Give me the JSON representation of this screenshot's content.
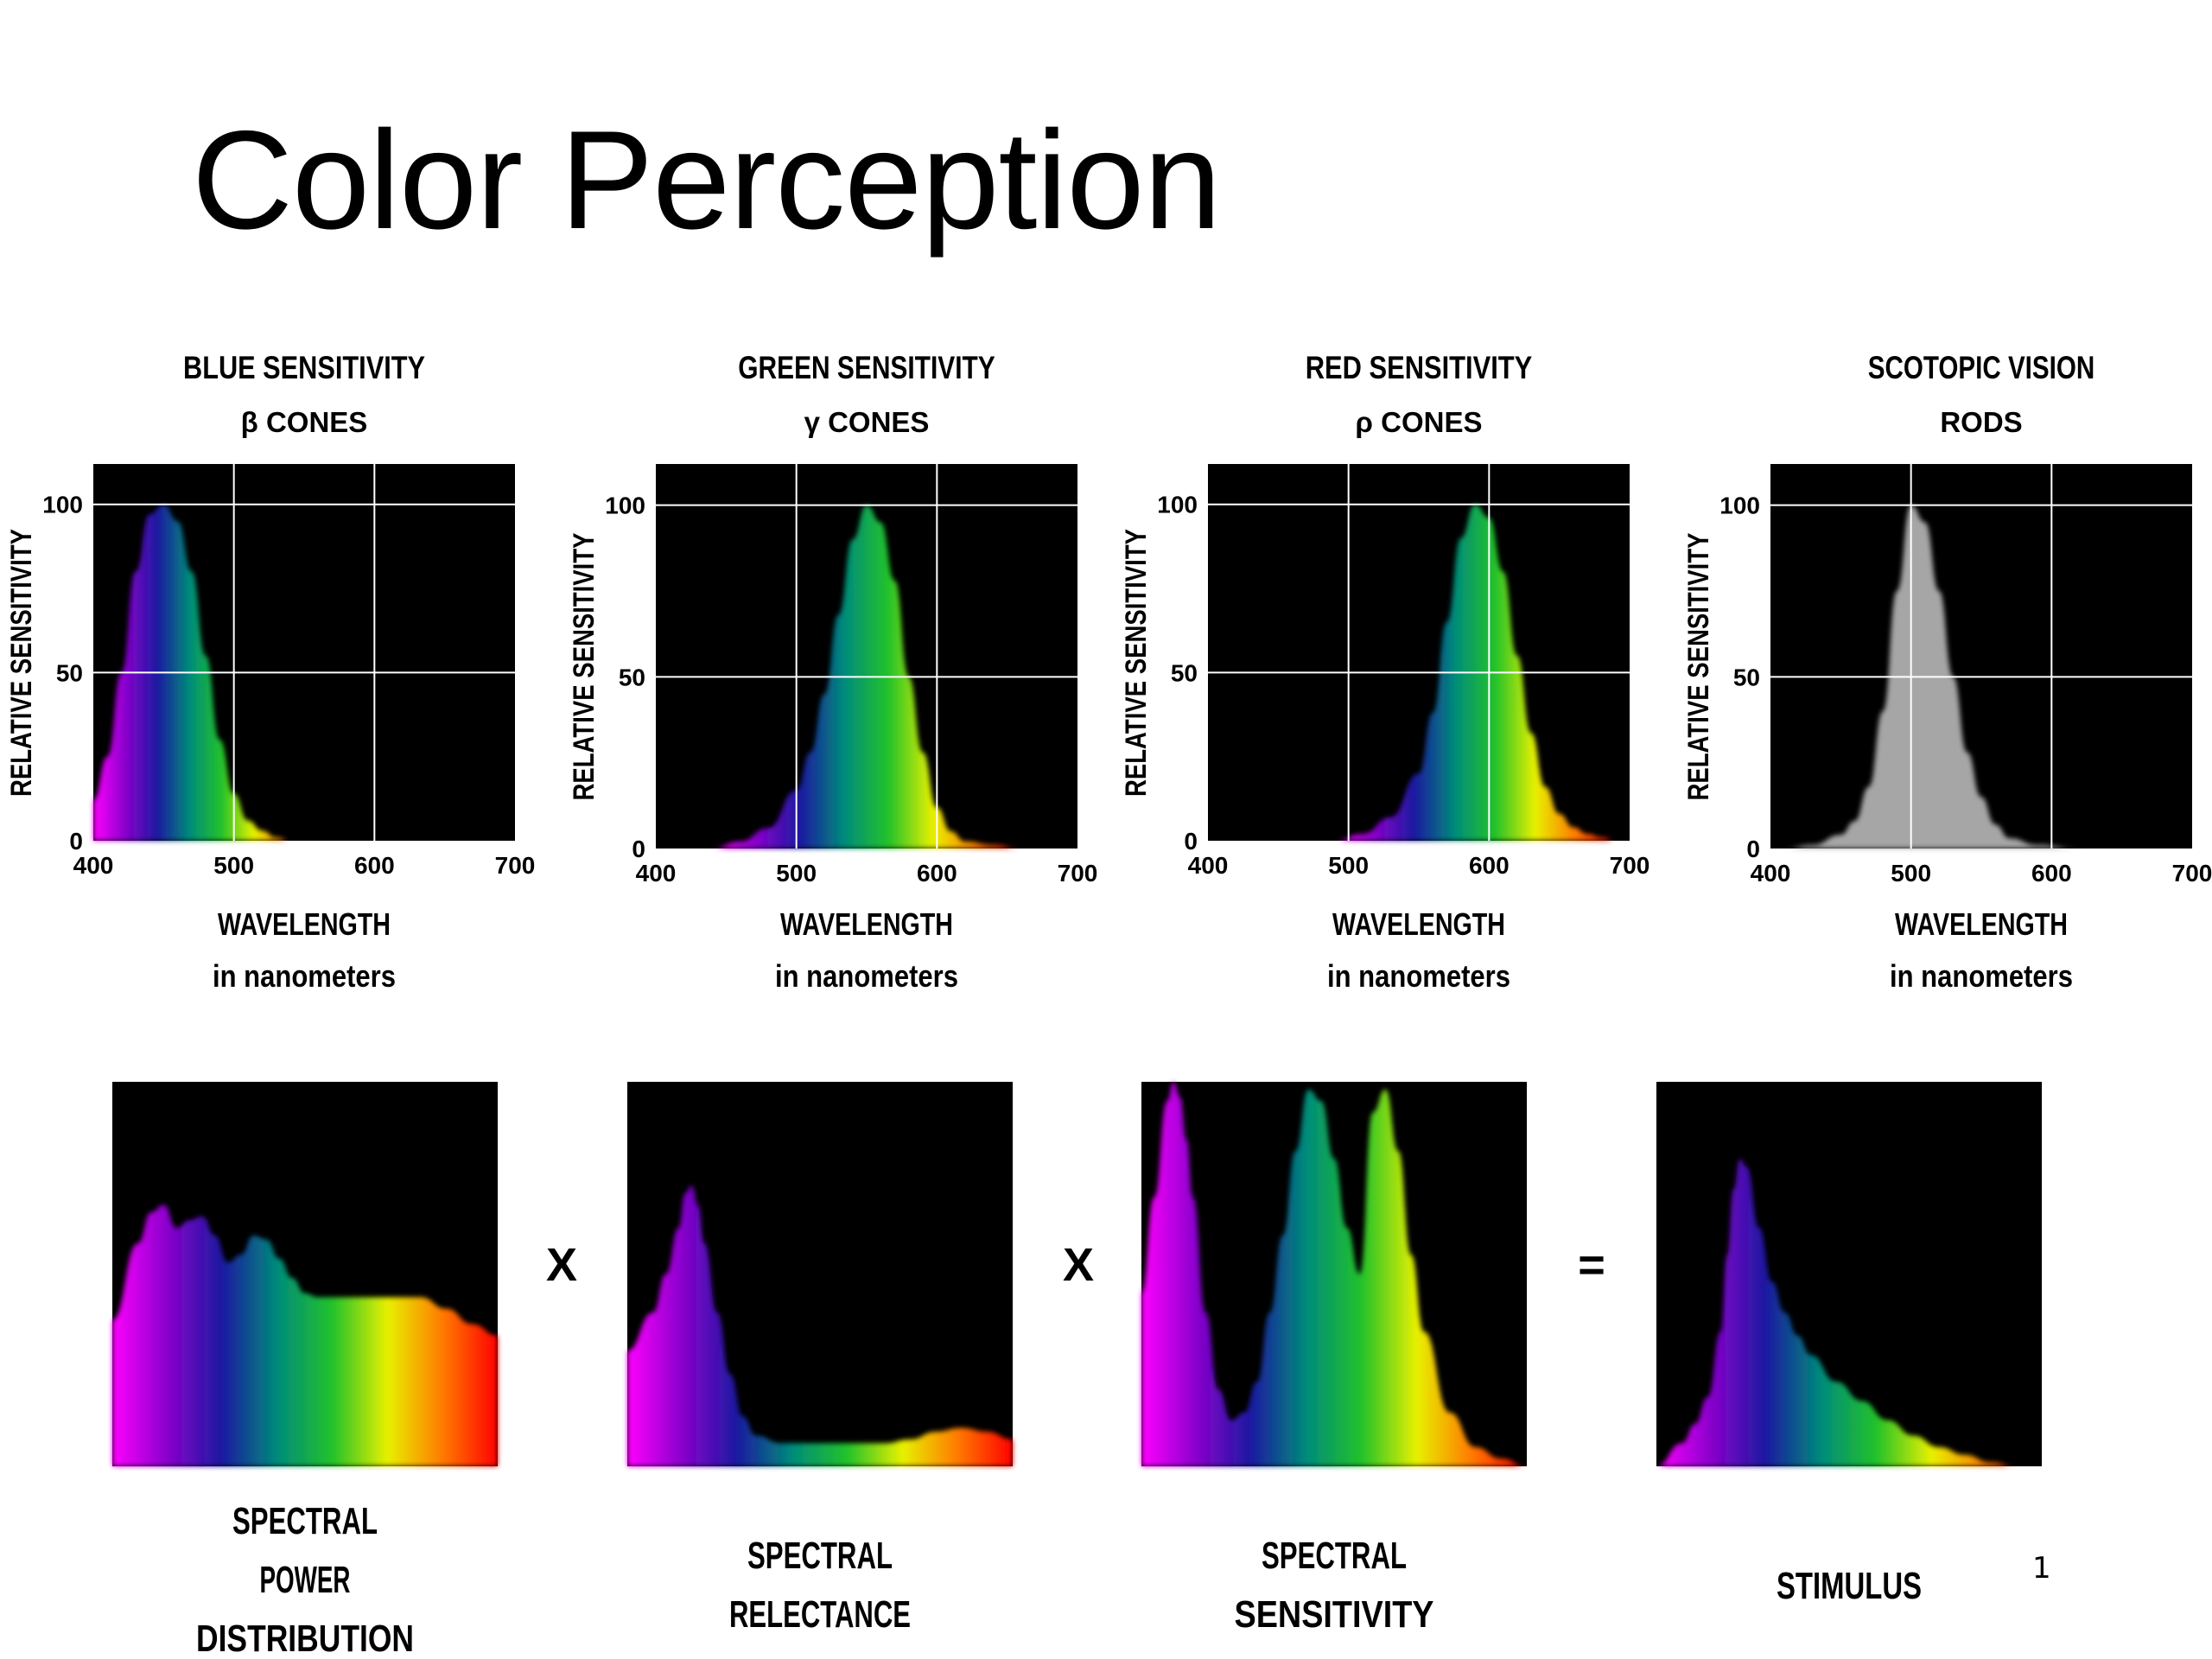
{
  "title": "Color Perception",
  "slide_number": "1",
  "colors": {
    "plot_background": "#000000",
    "grid": "#ffffff",
    "rods_fill": "#a6a6a6",
    "spectrum": [
      "#ff00ff",
      "#8800cc",
      "#1a1aa0",
      "#008c7a",
      "#22c22a",
      "#e8f000",
      "#ff7a00",
      "#ff0000"
    ]
  },
  "chart_data": [
    {
      "type": "area",
      "title": "BLUE SENSITIVITY",
      "subtitle": "β CONES",
      "xlabel": "WAVELENGTH",
      "xlabel_sub": "in nanometers",
      "ylabel": "RELATIVE SENSITIVITY",
      "xlim": [
        400,
        700
      ],
      "ylim": [
        0,
        112
      ],
      "x_ticks": [
        400,
        500,
        600,
        700
      ],
      "y_ticks": [
        0,
        50,
        100
      ],
      "grid": true,
      "fill": "spectrum",
      "x": [
        400,
        410,
        420,
        430,
        440,
        450,
        460,
        470,
        480,
        490,
        500,
        510,
        520,
        530,
        540,
        550,
        560
      ],
      "y": [
        12,
        25,
        50,
        80,
        97,
        100,
        95,
        80,
        55,
        30,
        14,
        6,
        3,
        1,
        0,
        0,
        0
      ]
    },
    {
      "type": "area",
      "title": "GREEN SENSITIVITY",
      "subtitle": "γ CONES",
      "xlabel": "WAVELENGTH",
      "xlabel_sub": "in nanometers",
      "ylabel": "RELATIVE SENSITIVITY",
      "xlim": [
        400,
        700
      ],
      "ylim": [
        0,
        112
      ],
      "x_ticks": [
        400,
        500,
        600,
        700
      ],
      "y_ticks": [
        0,
        50,
        100
      ],
      "grid": true,
      "fill": "spectrum",
      "x": [
        440,
        460,
        480,
        500,
        510,
        520,
        530,
        540,
        550,
        560,
        570,
        580,
        590,
        600,
        610,
        620,
        640,
        660
      ],
      "y": [
        0,
        2,
        6,
        17,
        28,
        45,
        68,
        90,
        100,
        95,
        78,
        50,
        28,
        12,
        5,
        2,
        1,
        0
      ]
    },
    {
      "type": "area",
      "title": "RED SENSITIVITY",
      "subtitle": "ρ CONES",
      "xlabel": "WAVELENGTH",
      "xlabel_sub": "in nanometers",
      "ylabel": "RELATIVE SENSITIVITY",
      "xlim": [
        400,
        700
      ],
      "ylim": [
        0,
        112
      ],
      "x_ticks": [
        400,
        500,
        600,
        700
      ],
      "y_ticks": [
        0,
        50,
        100
      ],
      "grid": true,
      "fill": "spectrum",
      "x": [
        490,
        510,
        530,
        550,
        560,
        570,
        580,
        590,
        600,
        610,
        620,
        630,
        640,
        650,
        660,
        670,
        680,
        690
      ],
      "y": [
        0,
        2,
        7,
        20,
        38,
        65,
        90,
        100,
        96,
        80,
        55,
        32,
        16,
        8,
        4,
        2,
        1,
        0
      ]
    },
    {
      "type": "area",
      "title": "SCOTOPIC VISION",
      "subtitle": "RODS",
      "xlabel": "WAVELENGTH",
      "xlabel_sub": "in nanometers",
      "ylabel": "RELATIVE SENSITIVITY",
      "xlim": [
        400,
        700
      ],
      "ylim": [
        0,
        112
      ],
      "x_ticks": [
        400,
        500,
        600,
        700
      ],
      "y_ticks": [
        0,
        50,
        100
      ],
      "grid": true,
      "fill": "gray",
      "x": [
        410,
        430,
        450,
        460,
        470,
        480,
        490,
        500,
        510,
        520,
        530,
        540,
        550,
        560,
        570,
        590,
        620,
        650
      ],
      "y": [
        0,
        1,
        4,
        8,
        18,
        40,
        75,
        100,
        95,
        75,
        50,
        28,
        15,
        7,
        3,
        1,
        0,
        0
      ]
    },
    {
      "type": "area",
      "label": "SPECTRAL\nPOWER\nDISTRIBUTION",
      "xlim": [
        400,
        700
      ],
      "ylim": [
        0,
        100
      ],
      "fill": "spectrum",
      "x": [
        400,
        420,
        430,
        440,
        450,
        460,
        470,
        480,
        490,
        500,
        510,
        520,
        530,
        540,
        550,
        560,
        580,
        600,
        620,
        640,
        660,
        680,
        700
      ],
      "y": [
        38,
        58,
        66,
        68,
        62,
        64,
        65,
        60,
        53,
        55,
        60,
        59,
        54,
        49,
        45,
        44,
        44,
        44,
        44,
        44,
        41,
        37,
        34
      ]
    },
    {
      "type": "area",
      "label": "SPECTRAL\nRELECTANCE",
      "xlim": [
        400,
        700
      ],
      "ylim": [
        0,
        100
      ],
      "fill": "spectrum",
      "x": [
        400,
        420,
        430,
        440,
        445,
        450,
        455,
        460,
        470,
        480,
        490,
        500,
        520,
        540,
        560,
        580,
        600,
        620,
        640,
        660,
        680,
        700
      ],
      "y": [
        30,
        40,
        50,
        62,
        71,
        73,
        68,
        58,
        40,
        24,
        13,
        8,
        6,
        6,
        6,
        6,
        6,
        7,
        9,
        10,
        9,
        7
      ]
    },
    {
      "type": "area",
      "label": "SPECTRAL\nSENSITIVITY",
      "xlim": [
        400,
        700
      ],
      "ylim": [
        0,
        100
      ],
      "fill": "spectrum",
      "x": [
        400,
        410,
        420,
        425,
        430,
        435,
        440,
        450,
        460,
        470,
        480,
        490,
        500,
        510,
        520,
        530,
        540,
        550,
        560,
        570,
        580,
        590,
        600,
        610,
        620,
        640,
        660,
        680,
        700
      ],
      "y": [
        45,
        70,
        95,
        100,
        96,
        85,
        70,
        40,
        20,
        12,
        14,
        22,
        40,
        60,
        82,
        98,
        95,
        80,
        62,
        50,
        92,
        98,
        82,
        55,
        35,
        14,
        5,
        2,
        0
      ]
    },
    {
      "type": "area",
      "label": "STIMULUS",
      "xlim": [
        400,
        700
      ],
      "ylim": [
        0,
        100
      ],
      "fill": "spectrum",
      "x": [
        400,
        420,
        430,
        440,
        450,
        455,
        460,
        465,
        470,
        480,
        490,
        500,
        510,
        520,
        540,
        560,
        580,
        600,
        620,
        640,
        660,
        680,
        700
      ],
      "y": [
        0,
        6,
        11,
        18,
        35,
        55,
        72,
        80,
        78,
        62,
        48,
        40,
        34,
        29,
        22,
        17,
        12,
        8,
        5,
        3,
        1,
        0,
        0
      ]
    }
  ],
  "operators": [
    "X",
    "X",
    "="
  ]
}
